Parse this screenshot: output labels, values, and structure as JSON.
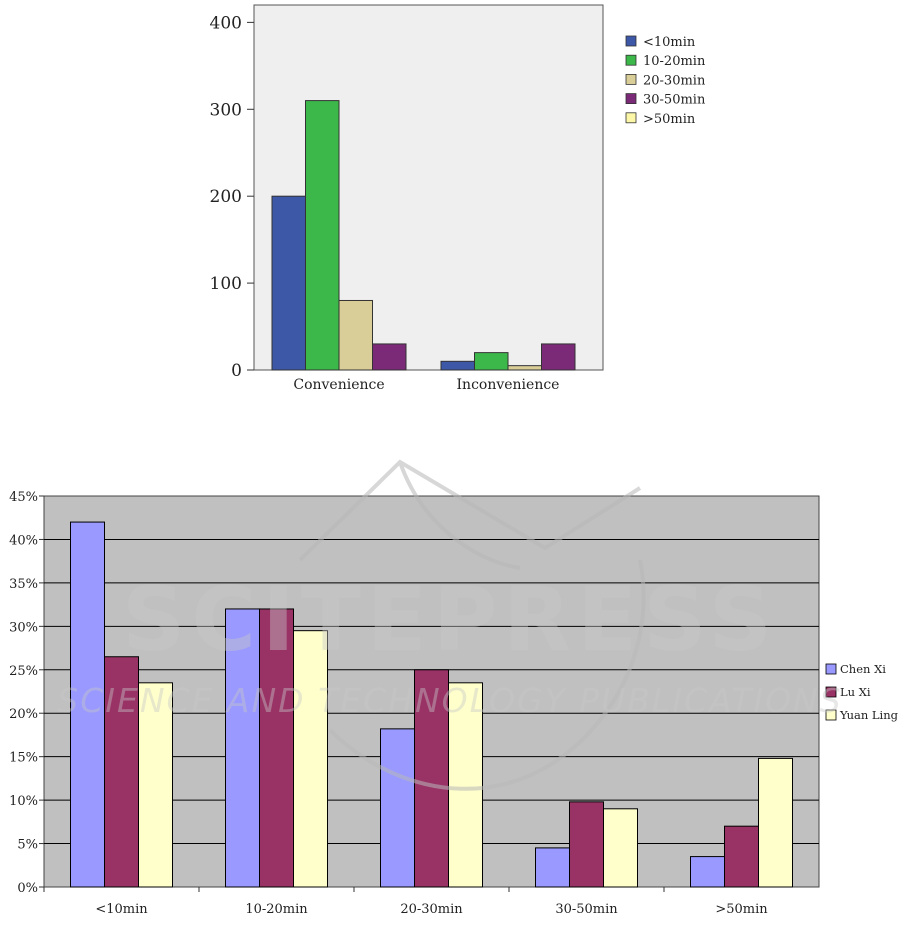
{
  "watermark": {
    "line1": "SCITEPRESS",
    "line2": "SCIENCE AND TECHNOLOGY PUBLICATIONS"
  },
  "chart_data": [
    {
      "type": "bar",
      "categories": [
        "Convenience",
        "Inconvenience"
      ],
      "series": [
        {
          "name": "<10min",
          "color": "#3e58a8",
          "values": [
            200,
            10
          ]
        },
        {
          "name": "10-20min",
          "color": "#3cb84a",
          "values": [
            310,
            20
          ]
        },
        {
          "name": "20-30min",
          "color": "#d9cd98",
          "values": [
            80,
            5
          ]
        },
        {
          "name": "30-50min",
          "color": "#7b2a77",
          "values": [
            30,
            30
          ]
        },
        {
          "name": ">50min",
          "color": "#fbf7a7",
          "values": [
            0,
            0
          ]
        }
      ],
      "ylim": [
        0,
        420
      ],
      "yticks": [
        "0",
        "100",
        "200",
        "300",
        "400"
      ],
      "ytick_values": [
        0,
        100,
        200,
        300,
        400
      ],
      "grid": false,
      "legend": "right",
      "background": "#efefef"
    },
    {
      "type": "bar",
      "categories": [
        "<10min",
        "10-20min",
        "20-30min",
        "30-50min",
        ">50min"
      ],
      "series": [
        {
          "name": "Chen Xi",
          "color": "#9999ff",
          "values": [
            42,
            32,
            18.2,
            4.5,
            3.5
          ]
        },
        {
          "name": "Lu Xi",
          "color": "#993366",
          "values": [
            26.5,
            32,
            25,
            9.8,
            7
          ]
        },
        {
          "name": "Yuan Ling",
          "color": "#ffffcc",
          "values": [
            23.5,
            29.5,
            23.5,
            9,
            14.8
          ]
        }
      ],
      "ylim": [
        0,
        45
      ],
      "yticks": [
        "0%",
        "5%",
        "10%",
        "15%",
        "20%",
        "25%",
        "30%",
        "35%",
        "40%",
        "45%"
      ],
      "ytick_values": [
        0,
        5,
        10,
        15,
        20,
        25,
        30,
        35,
        40,
        45
      ],
      "grid": true,
      "legend": "right",
      "background": "#c0c0c0"
    }
  ]
}
